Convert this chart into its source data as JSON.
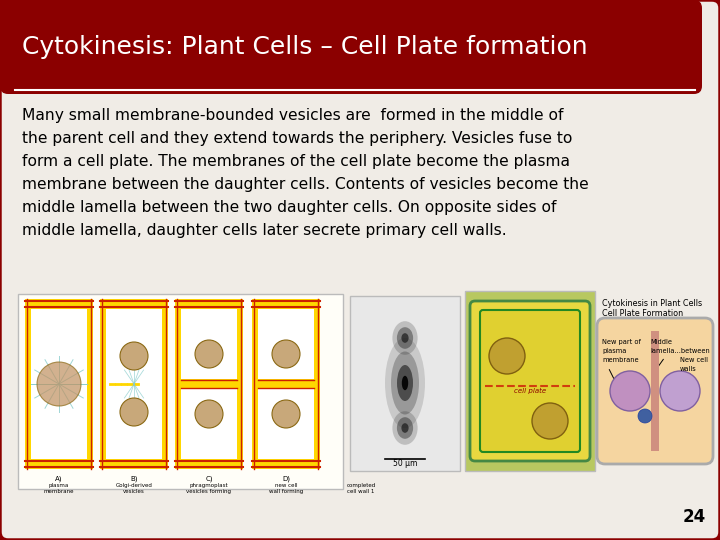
{
  "title": "Cytokinesis: Plant Cells – Cell Plate formation",
  "title_color": "#ffffff",
  "title_bg_color": "#8B0000",
  "slide_bg_color": "#8B0000",
  "inner_bg": "#f0ece6",
  "body_text_lines": [
    "Many small membrane-bounded vesicles are  formed in the middle of",
    "the parent cell and they extend towards the periphery. Vesicles fuse to",
    "form a cell plate. The membranes of the cell plate become the plasma",
    "membrane between the daughter cells. Contents of vesicles become the",
    "middle lamella between the two daughter cells. On opposite sides of",
    "middle lamella, daughter cells later secrete primary cell walls."
  ],
  "body_text_color": "#000000",
  "body_text_fontsize": 11.2,
  "title_fontsize": 18,
  "page_number": "24",
  "underline_color": "#ffffff",
  "border_color": "#8B0000",
  "cell_wall_yellow": "#DAA520",
  "cell_wall_red": "#cc2200",
  "cell_wall_outer": "#FFD700",
  "nucleus_fill": "#C8A87A",
  "nucleus_edge": "#8B6914",
  "plate_color": "#FFD700",
  "img2_bg": "#e8e8e8",
  "img3_bg": "#c8d870",
  "img4_bg": "#e8d5b0",
  "img4_cell_fill": "#f5d5a0",
  "img4_nuc1": "#c090c0",
  "img4_nuc2": "#c0a0d0",
  "img4_blue": "#4060a0",
  "img4_plate_line": "#c06060",
  "right_label_title": "Cytokinesis in Plant Cells",
  "right_label_sub": "Cell Plate Formation",
  "right_label_1a": "New part of",
  "right_label_1b": "plasma",
  "right_label_1c": "membrane",
  "right_label_2a": "Middle",
  "right_label_2b": "lamella...between",
  "right_label_3a": "New cell",
  "right_label_3b": "walls"
}
